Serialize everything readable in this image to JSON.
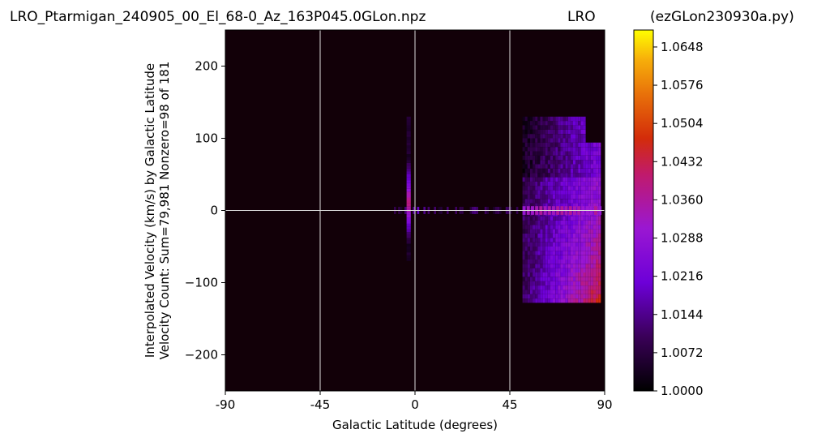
{
  "header": {
    "filename": "LRO_Ptarmigan_240905_00_El_68-0_Az_163P045.0GLon.npz",
    "station": "LRO",
    "program": "(ezGLon230930a.py)"
  },
  "chart_data": {
    "type": "heatmap",
    "xlabel": "Galactic Latitude (degrees)",
    "ylabel_line1": "Interpolated Velocity (km/s) by Galactic Latitude",
    "ylabel_line2": "Velocity Count: Sum=79,981 Nonzero=98 of 181",
    "xlim": [
      -90,
      90
    ],
    "ylim": [
      -250,
      250
    ],
    "x_ticks": [
      -90,
      -45,
      0,
      45,
      90
    ],
    "x_tick_labels": [
      "-90",
      "-45",
      "0",
      "45",
      "90"
    ],
    "y_ticks": [
      200,
      100,
      0,
      -100,
      -200
    ],
    "y_tick_labels": [
      "200",
      "100",
      "0",
      "−100",
      "−200"
    ],
    "grid": true,
    "colormap": "gnuplot",
    "background_color": "#120008",
    "colorbar": {
      "min": 1.0,
      "max": 1.068,
      "ticks": [
        1.0,
        1.0072,
        1.0144,
        1.0216,
        1.0288,
        1.036,
        1.0432,
        1.0504,
        1.0576,
        1.0648
      ],
      "tick_labels": [
        "1.0000",
        "1.0072",
        "1.0144",
        "1.0216",
        "1.0288",
        "1.0360",
        "1.0432",
        "1.0504",
        "1.0576",
        "1.0648"
      ]
    },
    "features": [
      {
        "name": "narrow vertical spike",
        "lat": [
          -4,
          -2
        ],
        "vel": [
          -70,
          130
        ],
        "peak": 1.04
      },
      {
        "name": "horizontal zero-velocity band",
        "lat": [
          -10,
          52
        ],
        "vel": [
          -6,
          6
        ],
        "peak": 1.025
      },
      {
        "name": "broad emission block",
        "lat": [
          50,
          88
        ],
        "vel": [
          -128,
          128
        ],
        "peak": 1.06
      }
    ]
  }
}
